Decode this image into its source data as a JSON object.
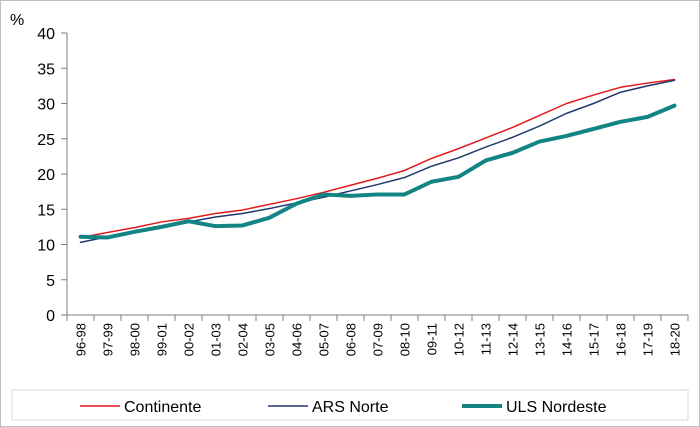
{
  "chart_data": {
    "type": "line",
    "ylabel": "%",
    "ylim": [
      0,
      40
    ],
    "yticks": [
      0,
      5,
      10,
      15,
      20,
      25,
      30,
      35,
      40
    ],
    "categories": [
      "96-98",
      "97-99",
      "98-00",
      "99-01",
      "00-02",
      "01-03",
      "02-04",
      "03-05",
      "04-06",
      "05-07",
      "06-08",
      "07-09",
      "08-10",
      "09-11",
      "10-12",
      "11-13",
      "12-14",
      "13-15",
      "14-16",
      "15-17",
      "16-18",
      "17-19",
      "18-20"
    ],
    "series": [
      {
        "name": "Continente",
        "color": "#e31a1c",
        "width": 1.5,
        "values": [
          11.0,
          11.7,
          12.4,
          13.2,
          13.7,
          14.4,
          14.9,
          15.7,
          16.5,
          17.4,
          18.4,
          19.4,
          20.5,
          22.2,
          23.6,
          25.1,
          26.6,
          28.3,
          30.0,
          31.2,
          32.3,
          32.9,
          33.4
        ]
      },
      {
        "name": "ARS Norte",
        "color": "#1f3a6e",
        "width": 1.5,
        "values": [
          10.3,
          11.1,
          11.9,
          12.6,
          13.2,
          13.9,
          14.4,
          15.1,
          15.9,
          16.7,
          17.6,
          18.5,
          19.5,
          21.1,
          22.3,
          23.8,
          25.2,
          26.8,
          28.6,
          30.0,
          31.6,
          32.5,
          33.3
        ]
      },
      {
        "name": "ULS Nordeste",
        "color": "#138484",
        "width": 4,
        "values": [
          11.1,
          11.0,
          11.8,
          12.5,
          13.3,
          12.6,
          12.7,
          13.8,
          15.8,
          17.1,
          16.9,
          17.1,
          17.1,
          18.9,
          19.6,
          21.9,
          23.0,
          24.6,
          25.4,
          26.4,
          27.4,
          28.1,
          29.7
        ]
      }
    ],
    "legend_position": "bottom",
    "grid": false
  }
}
